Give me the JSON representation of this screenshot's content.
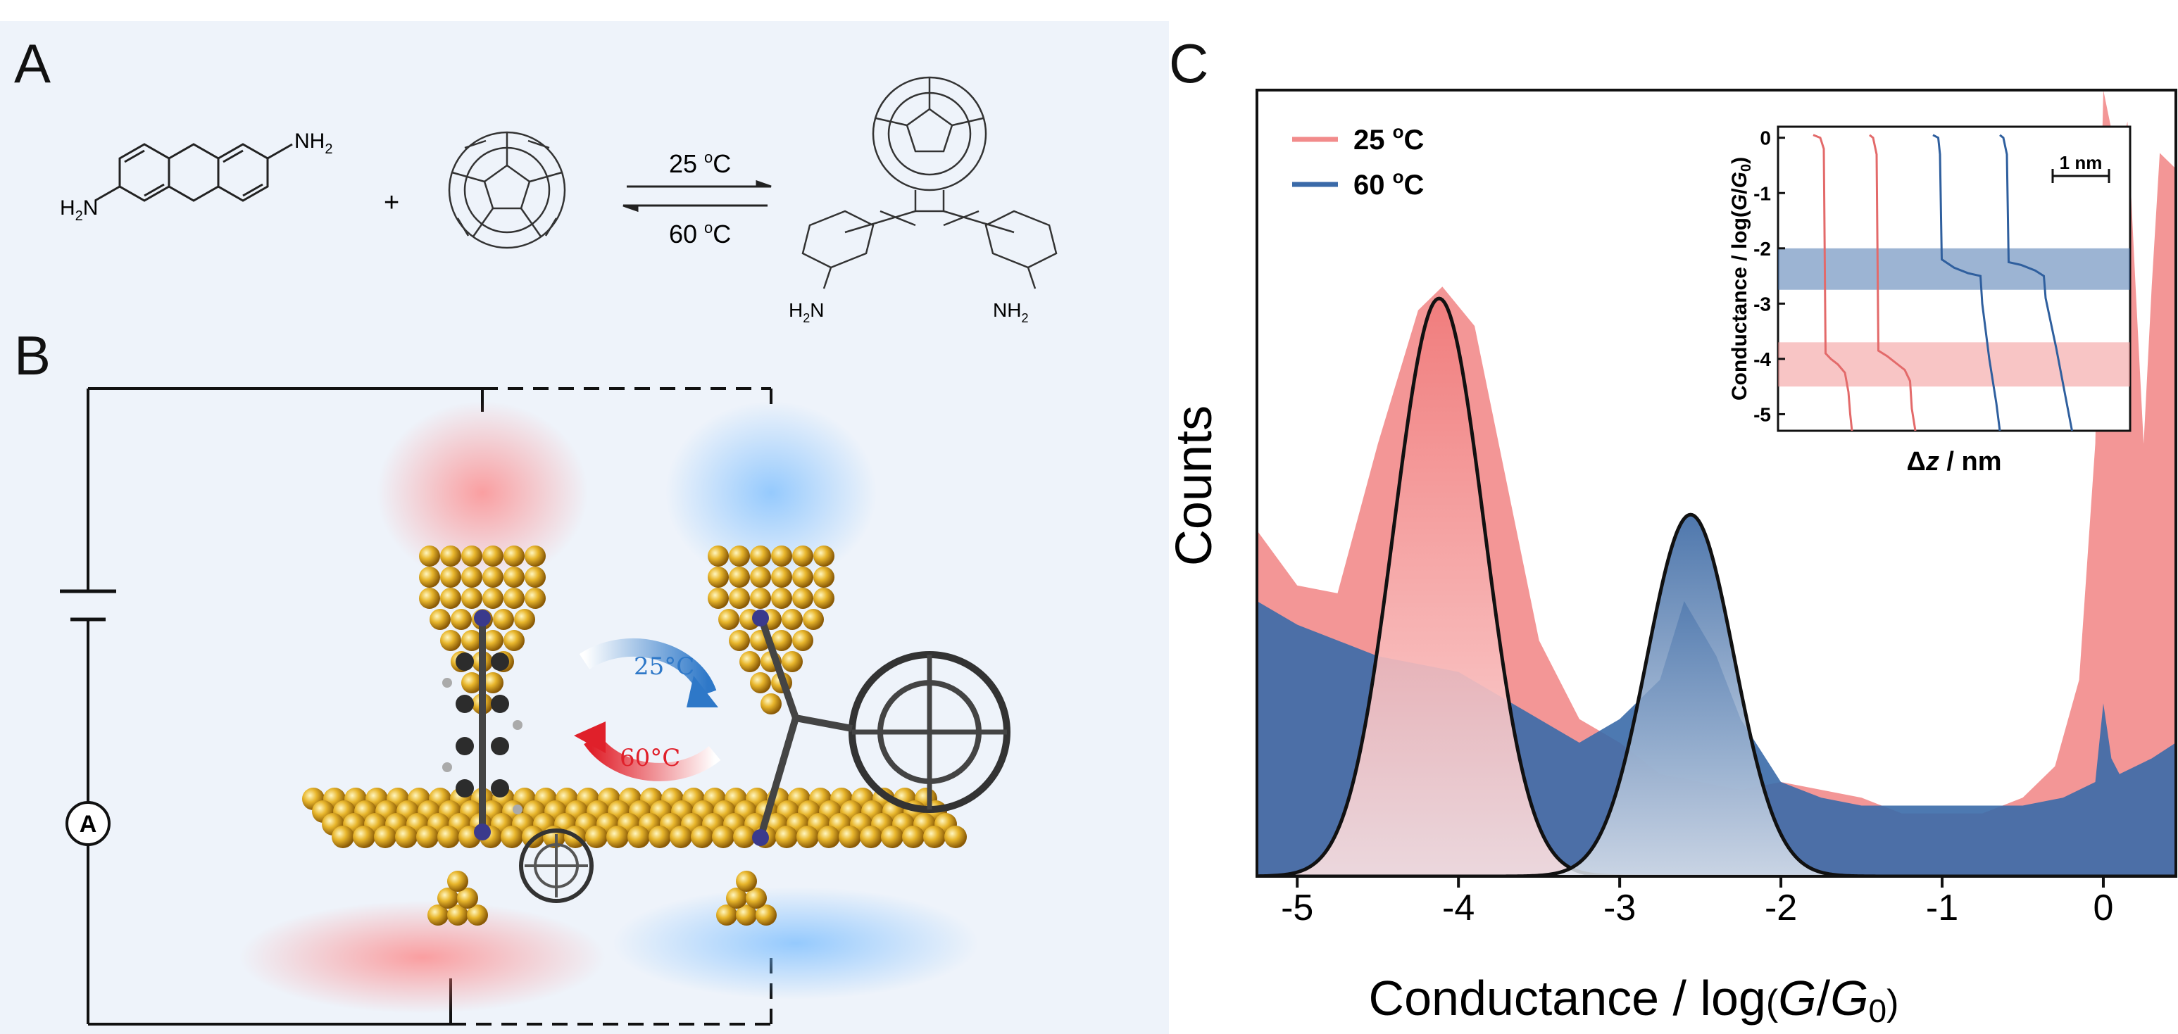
{
  "panels": {
    "a": {
      "letter": "A",
      "reagent_left_substituent_top": "NH",
      "reagent_left_substituent_top_sub": "2",
      "reagent_left_substituent_bottom": "H",
      "reagent_left_substituent_bottom_sub": "2",
      "reagent_left_substituent_bottom_n": "N",
      "plus": "+",
      "forward_label": "25 ",
      "forward_sup": "o",
      "forward_unit": "C",
      "reverse_label": "60 ",
      "reverse_sup": "o",
      "reverse_unit": "C",
      "product_left_amine": "H",
      "product_left_amine_sub": "2",
      "product_left_amine_n": "N",
      "product_right_amine": "NH",
      "product_right_amine_sub": "2"
    },
    "b": {
      "letter": "B",
      "ammeter_label": "A",
      "cycle_forward": "25°C",
      "cycle_reverse": "60°C"
    },
    "c": {
      "letter": "C"
    }
  },
  "chart_data": [
    {
      "type": "area",
      "title": "",
      "xlabel_prefix": "Conductance / log",
      "xlabel_paren_open": "(",
      "xlabel_G": "G",
      "xlabel_slash": "/",
      "xlabel_G0": "G",
      "xlabel_sub0": "0",
      "xlabel_paren_close": ")",
      "ylabel": "Counts",
      "xlim": [
        -5.25,
        0.45
      ],
      "xticks": [
        -5,
        -4,
        -3,
        -2,
        -1,
        0
      ],
      "xtick_labels": [
        "-5",
        "-4",
        "-3",
        "-2",
        "-1",
        "0"
      ],
      "legend": {
        "position": "top-left",
        "entries": [
          {
            "name": "25 ",
            "sup": "o",
            "unit": "C",
            "color": "#f28b8b"
          },
          {
            "name": "60 ",
            "sup": "o",
            "unit": "C",
            "color": "#3a6aa8"
          }
        ]
      },
      "series": [
        {
          "name": "25 oC",
          "color": "#f28b8b",
          "x": [
            -5.25,
            -5.0,
            -4.75,
            -4.5,
            -4.25,
            -4.1,
            -3.9,
            -3.75,
            -3.5,
            -3.25,
            -3.0,
            -2.75,
            -2.5,
            -2.25,
            -2.0,
            -1.75,
            -1.5,
            -1.25,
            -1.0,
            -0.75,
            -0.5,
            -0.3,
            -0.15,
            -0.05,
            0.0,
            0.05,
            0.1,
            0.15,
            0.2,
            0.25,
            0.3,
            0.35,
            0.45
          ],
          "y": [
            0.44,
            0.37,
            0.36,
            0.55,
            0.72,
            0.75,
            0.7,
            0.55,
            0.3,
            0.2,
            0.17,
            0.13,
            0.12,
            0.11,
            0.12,
            0.11,
            0.1,
            0.08,
            0.08,
            0.08,
            0.1,
            0.14,
            0.25,
            0.55,
            1.0,
            0.95,
            0.92,
            0.96,
            0.75,
            0.55,
            0.75,
            0.92,
            0.9
          ]
        },
        {
          "name": "60 oC",
          "color": "#3a6aa8",
          "x": [
            -5.25,
            -5.0,
            -4.75,
            -4.5,
            -4.25,
            -4.0,
            -3.75,
            -3.5,
            -3.25,
            -3.0,
            -2.75,
            -2.6,
            -2.4,
            -2.25,
            -2.0,
            -1.75,
            -1.5,
            -1.25,
            -1.0,
            -0.75,
            -0.5,
            -0.25,
            -0.05,
            0.0,
            0.05,
            0.1,
            0.2,
            0.3,
            0.45
          ],
          "y": [
            0.35,
            0.32,
            0.3,
            0.28,
            0.27,
            0.26,
            0.23,
            0.2,
            0.17,
            0.2,
            0.25,
            0.35,
            0.28,
            0.2,
            0.12,
            0.1,
            0.09,
            0.09,
            0.09,
            0.09,
            0.09,
            0.1,
            0.12,
            0.22,
            0.15,
            0.13,
            0.14,
            0.15,
            0.17
          ]
        }
      ],
      "fits": [
        {
          "name": "25 oC fit",
          "center": -4.12,
          "sigma": 0.28,
          "peak": 0.735,
          "fill": "#f28b8b"
        },
        {
          "name": "60 oC fit",
          "center": -2.56,
          "sigma": 0.27,
          "peak": 0.46,
          "fill": "#2f5f9e"
        }
      ]
    },
    {
      "type": "line",
      "title": "",
      "xlabel_delta": "Δ",
      "xlabel_z": "z",
      "xlabel_rest": " / nm",
      "ylabel_prefix": "Conductance / log(",
      "ylabel_G": "G",
      "ylabel_slash": "/",
      "ylabel_G0": "G",
      "ylabel_sub0": "0",
      "ylabel_close": ")",
      "ylim": [
        -5.3,
        0.2
      ],
      "yticks": [
        0,
        -1,
        -2,
        -3,
        -4,
        -5
      ],
      "ytick_labels": [
        "0",
        "-1",
        "-2",
        "-3",
        "-4",
        "-5"
      ],
      "scale_bar_label": "1 nm",
      "xlim": [
        0,
        10
      ],
      "bands": [
        {
          "from": -2.0,
          "to": -2.75,
          "color": "#3a6aa8"
        },
        {
          "from": -3.7,
          "to": -4.5,
          "color": "#f28b8b"
        }
      ],
      "traces": [
        {
          "name": "25 oC trace 1",
          "color": "#e36a6a",
          "x": [
            1.0,
            1.2,
            1.3,
            1.35,
            1.5,
            1.7,
            1.9,
            2.0,
            2.05,
            2.1
          ],
          "y": [
            0.05,
            0.0,
            -0.2,
            -3.9,
            -4.0,
            -4.1,
            -4.25,
            -4.6,
            -5.0,
            -5.3
          ]
        },
        {
          "name": "25 oC trace 2",
          "color": "#e36a6a",
          "x": [
            2.6,
            2.7,
            2.8,
            2.85,
            3.1,
            3.4,
            3.6,
            3.75,
            3.8,
            3.9
          ],
          "y": [
            0.05,
            0.0,
            -0.3,
            -3.85,
            -3.95,
            -4.1,
            -4.2,
            -4.4,
            -4.9,
            -5.3
          ]
        },
        {
          "name": "60 oC trace 1",
          "color": "#2f5f9e",
          "x": [
            4.4,
            4.55,
            4.6,
            4.65,
            5.0,
            5.4,
            5.75,
            5.8,
            6.0,
            6.2,
            6.3
          ],
          "y": [
            0.05,
            0.0,
            -0.3,
            -2.2,
            -2.35,
            -2.45,
            -2.5,
            -3.0,
            -4.0,
            -4.8,
            -5.3
          ]
        },
        {
          "name": "60 oC trace 2",
          "color": "#2f5f9e",
          "x": [
            6.3,
            6.4,
            6.5,
            6.55,
            6.9,
            7.3,
            7.55,
            7.6,
            7.9,
            8.2,
            8.35
          ],
          "y": [
            0.05,
            0.0,
            -0.3,
            -2.25,
            -2.3,
            -2.4,
            -2.5,
            -2.9,
            -3.8,
            -4.8,
            -5.3
          ]
        }
      ]
    }
  ]
}
